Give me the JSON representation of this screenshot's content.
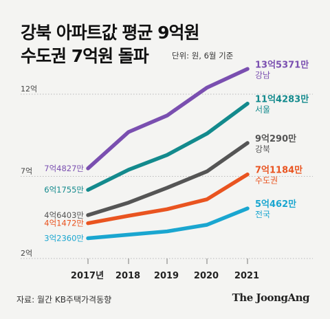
{
  "title_line1": "강북 아파트값 평균 9억원",
  "title_line2": "수도권 7억원 돌파",
  "unit_note": "단위: 원, 6월 기준",
  "source": "자료: 월간 KB주택가격동향",
  "logo": "The JoongAng",
  "chart_data": {
    "type": "line",
    "categories": [
      "2017년",
      "2018",
      "2019",
      "2020",
      "2021"
    ],
    "y_ticks": [
      {
        "value": 12,
        "label": "12억"
      },
      {
        "value": 7,
        "label": "7억"
      },
      {
        "value": 2,
        "label": "2억"
      }
    ],
    "ylim": [
      2,
      14
    ],
    "grid": "dotted horizontal at tick values",
    "series": [
      {
        "name": "강남",
        "color": "#7a4fb0",
        "values": [
          7.4827,
          9.7,
          10.7,
          12.4,
          13.5371
        ],
        "start_label": "7억4827만",
        "end_label": "13억5371만"
      },
      {
        "name": "서울",
        "color": "#138a8d",
        "values": [
          6.1755,
          7.4,
          8.3,
          9.6,
          11.4283
        ],
        "start_label": "6억1755만",
        "end_label": "11억4283만"
      },
      {
        "name": "강북",
        "color": "#555555",
        "values": [
          4.6403,
          5.4,
          6.3,
          7.3,
          9.029
        ],
        "start_label": "4억6403만",
        "end_label": "9억290만"
      },
      {
        "name": "수도권",
        "color": "#e95420",
        "values": [
          4.1472,
          4.6,
          5.0,
          5.6,
          7.1184
        ],
        "start_label": "4억1472만",
        "end_label": "7억1184만"
      },
      {
        "name": "전국",
        "color": "#1aa6d0",
        "values": [
          3.236,
          3.45,
          3.65,
          4.05,
          5.0462
        ],
        "start_label": "3억2360만",
        "end_label": "5억462만"
      }
    ]
  }
}
